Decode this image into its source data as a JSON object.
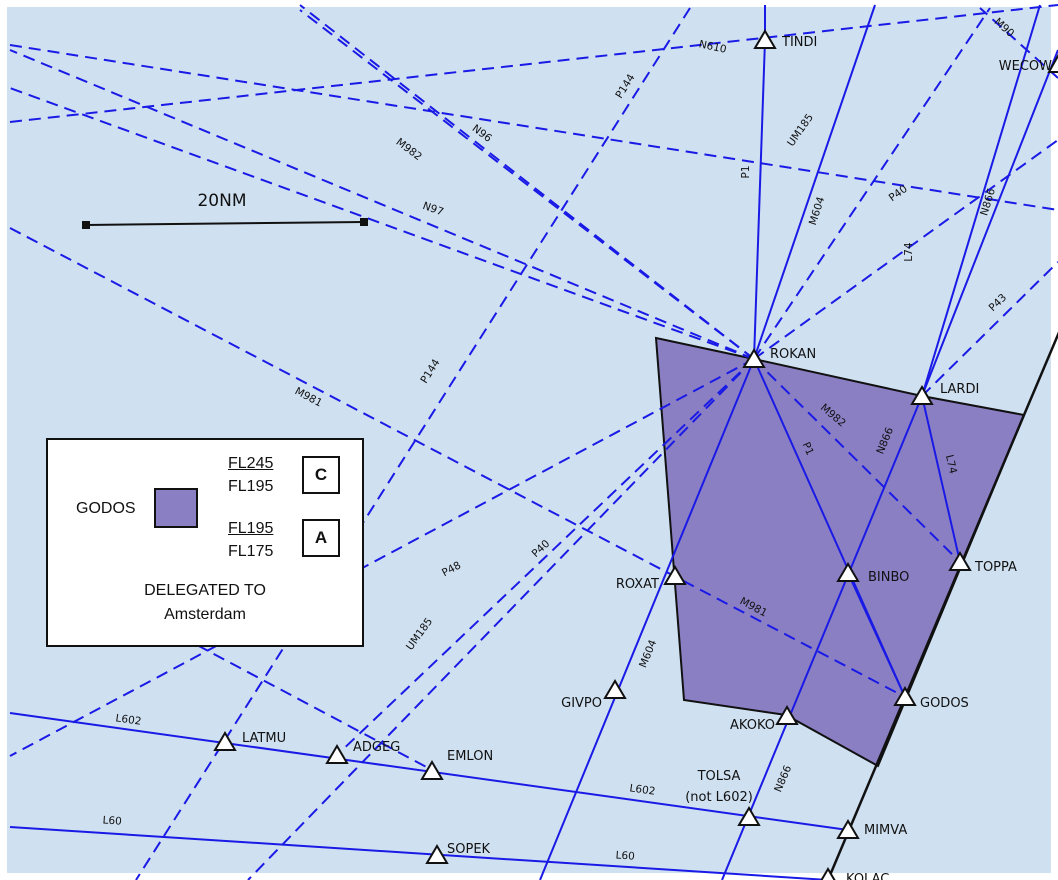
{
  "scale_bar": {
    "label": "20NM"
  },
  "colors": {
    "sea": "#cfe0f1",
    "route": "#1a1ae6",
    "sector_fill": "#8b7fc4",
    "sector_edge": "#111111"
  },
  "legend": {
    "sector": "GODOS",
    "upper_block": {
      "top": "FL245",
      "bottom": "FL195",
      "class": "C"
    },
    "lower_block": {
      "top": "FL195",
      "bottom": "FL175",
      "class": "A"
    },
    "delegated_line1": "DELEGATED TO",
    "delegated_line2": "Amsterdam"
  },
  "waypoints": {
    "tindi": "TINDI",
    "wecow": "WECOW",
    "rokan": "ROKAN",
    "lardi": "LARDI",
    "roxat": "ROXAT",
    "binbo": "BINBO",
    "toppa": "TOPPA",
    "givpo": "GIVPO",
    "akoko": "AKOKO",
    "godos": "GODOS",
    "latmu": "LATMU",
    "adgeg": "ADGEG",
    "emlon": "EMLON",
    "tolsa": "TOLSA",
    "tolsa_note": "(not L602)",
    "mimva": "MIMVA",
    "sopek": "SOPEK",
    "kolac": "KOLAC"
  },
  "routes": {
    "n610": "N610",
    "m90": "M90",
    "p144_top": "P144",
    "n96": "N96",
    "m982_top": "M982",
    "um185_top": "UM185",
    "p1_top": "P1",
    "m604_top": "M604",
    "p40_top": "P40",
    "n866_top": "N866",
    "l74_top": "L74",
    "p43": "P43",
    "n97": "N97",
    "p144_mid": "P144",
    "m981_left": "M981",
    "m982_sector": "M982",
    "p1_sector": "P1",
    "n866_sector": "N866",
    "l74_sector": "L74",
    "p48": "P48",
    "p40_low": "P40",
    "um185_low": "UM185",
    "m981_sector": "M981",
    "m604_low": "M604",
    "l602_left": "L602",
    "l602_right": "L602",
    "n866_low": "N866",
    "l60_left": "L60",
    "l60_right": "L60"
  }
}
